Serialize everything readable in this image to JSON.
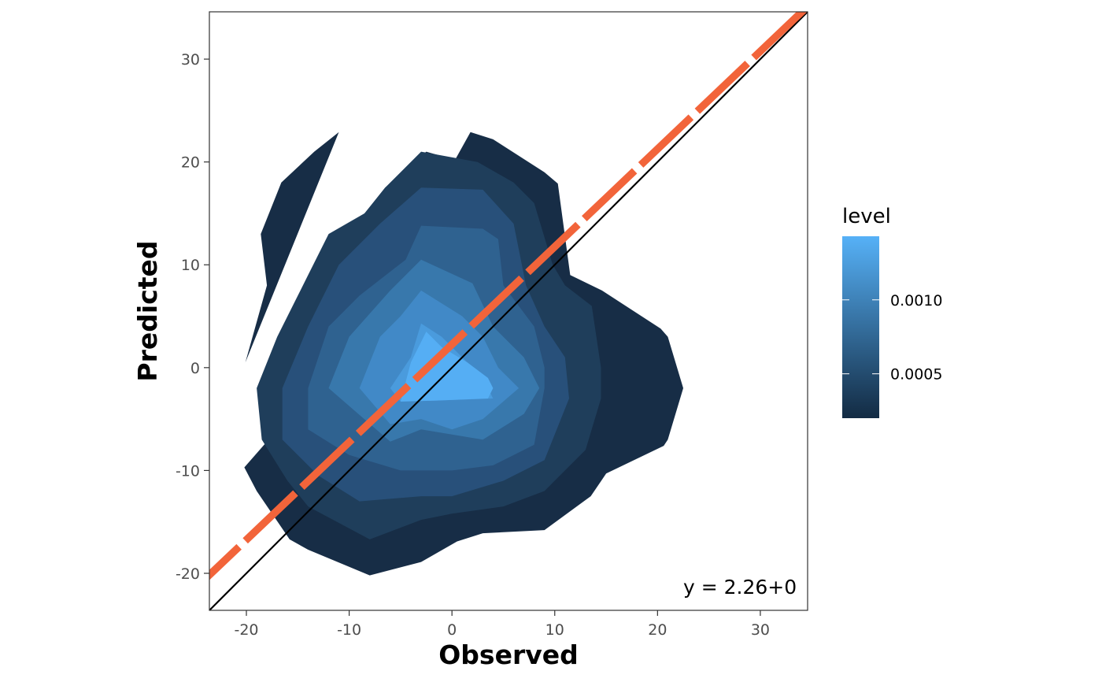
{
  "chart_data": {
    "type": "contour",
    "xlabel": "Observed",
    "ylabel": "Predicted",
    "xlim": [
      -23.6,
      34.6
    ],
    "ylim": [
      -23.6,
      34.6
    ],
    "x_ticks": [
      -20,
      -10,
      0,
      10,
      20,
      30
    ],
    "y_ticks": [
      -20,
      -10,
      0,
      10,
      20,
      30
    ],
    "x_tick_labels": [
      "-20",
      "-10",
      "0",
      "10",
      "20",
      "30"
    ],
    "y_tick_labels": [
      "-20",
      "-10",
      "0",
      "10",
      "20",
      "30"
    ],
    "grid": false,
    "legend": {
      "title": "level",
      "placement": "right",
      "type": "colorbar",
      "range": [
        0.0002,
        0.00143
      ],
      "ticks": [
        0.0005,
        0.001
      ],
      "tick_labels": [
        "0.0005",
        "0.0010"
      ],
      "color_low": "#132B43",
      "color_high": "#56B1F7"
    },
    "density_levels": [
      {
        "level": 0.0002,
        "color": "#172d46",
        "polygons": [
          [
            [
              1.8,
              22.9
            ],
            [
              4,
              22.2
            ],
            [
              9,
              19
            ],
            [
              10.3,
              17.9
            ],
            [
              11.5,
              9
            ],
            [
              14.6,
              7.5
            ],
            [
              20.3,
              3.8
            ],
            [
              21,
              3
            ],
            [
              22.5,
              -2
            ],
            [
              21,
              -7
            ],
            [
              20.6,
              -7.6
            ],
            [
              15,
              -10.3
            ],
            [
              13.5,
              -12.5
            ],
            [
              9,
              -15.8
            ],
            [
              3,
              -16.1
            ],
            [
              0.5,
              -16.9
            ],
            [
              -3,
              -18.9
            ],
            [
              -8,
              -20.2
            ],
            [
              -14,
              -17.7
            ],
            [
              -15.8,
              -16.7
            ],
            [
              -19,
              -12
            ],
            [
              -20.2,
              -9.7
            ],
            [
              -18,
              -7.2
            ],
            [
              -15.5,
              -1
            ],
            [
              -13,
              5
            ],
            [
              -11.8,
              8
            ],
            [
              -10.7,
              12.9
            ],
            [
              -8.5,
              15
            ],
            [
              -6.5,
              17.5
            ],
            [
              -2.5,
              21
            ],
            [
              0.3,
              20.2
            ]
          ],
          [
            [
              -20.1,
              0.5
            ],
            [
              -18,
              8
            ],
            [
              -18.6,
              13
            ],
            [
              -16.6,
              18
            ],
            [
              -13.4,
              21
            ],
            [
              -11,
              22.9
            ]
          ]
        ]
      },
      {
        "level": 0.00035,
        "color": "#1f3e5b",
        "polygons": [
          [
            [
              -3,
              21
            ],
            [
              2.5,
              20
            ],
            [
              6,
              18
            ],
            [
              8,
              16
            ],
            [
              9.8,
              10
            ],
            [
              11,
              8
            ],
            [
              13.6,
              6
            ],
            [
              14.5,
              0
            ],
            [
              14.5,
              -3
            ],
            [
              13,
              -8
            ],
            [
              9,
              -12
            ],
            [
              5,
              -13.5
            ],
            [
              0,
              -14.2
            ],
            [
              -3,
              -14.8
            ],
            [
              -8,
              -16.7
            ],
            [
              -14,
              -13.5
            ],
            [
              -16,
              -11
            ],
            [
              -18.5,
              -7
            ],
            [
              -19,
              -2
            ],
            [
              -17,
              3
            ],
            [
              -14,
              9
            ],
            [
              -12,
              13
            ],
            [
              -8.5,
              15
            ],
            [
              -6.5,
              17.5
            ]
          ]
        ]
      },
      {
        "level": 0.0005,
        "color": "#28507a",
        "polygons": [
          [
            [
              -3,
              17.5
            ],
            [
              3,
              17.3
            ],
            [
              6,
              14
            ],
            [
              6.8,
              10
            ],
            [
              7.2,
              8
            ],
            [
              9,
              4
            ],
            [
              11,
              1
            ],
            [
              11.4,
              -3
            ],
            [
              9,
              -9
            ],
            [
              5,
              -11
            ],
            [
              0,
              -12.5
            ],
            [
              -3,
              -12.5
            ],
            [
              -9,
              -13
            ],
            [
              -13,
              -10.5
            ],
            [
              -16.5,
              -7
            ],
            [
              -16.5,
              -2
            ],
            [
              -14,
              4
            ],
            [
              -11,
              10
            ],
            [
              -7,
              14
            ]
          ]
        ]
      },
      {
        "level": 0.00065,
        "color": "#2f6290",
        "polygons": [
          [
            [
              -3,
              13.8
            ],
            [
              3,
              13.5
            ],
            [
              4.5,
              12.5
            ],
            [
              5,
              8
            ],
            [
              8,
              4
            ],
            [
              9,
              0
            ],
            [
              9,
              -2
            ],
            [
              8,
              -7.5
            ],
            [
              4,
              -9.5
            ],
            [
              0,
              -10
            ],
            [
              -5,
              -10
            ],
            [
              -10,
              -8.5
            ],
            [
              -14,
              -6
            ],
            [
              -14,
              -2
            ],
            [
              -12,
              4
            ],
            [
              -9,
              7
            ],
            [
              -4.5,
              10.5
            ]
          ]
        ]
      },
      {
        "level": 0.0008,
        "color": "#3878ac",
        "polygons": [
          [
            [
              -3,
              10.5
            ],
            [
              2,
              8.2
            ],
            [
              4,
              4
            ],
            [
              7,
              1
            ],
            [
              8.5,
              -2
            ],
            [
              7,
              -4.5
            ],
            [
              3,
              -7
            ],
            [
              -3,
              -6
            ],
            [
              -6,
              -7.2
            ],
            [
              -12,
              -2
            ],
            [
              -10,
              3
            ],
            [
              -6,
              7.5
            ]
          ]
        ]
      },
      {
        "level": 0.00095,
        "color": "#4189c7",
        "polygons": [
          [
            [
              -3,
              7.5
            ],
            [
              1,
              5
            ],
            [
              3,
              3
            ],
            [
              4.5,
              0
            ],
            [
              6.5,
              -2
            ],
            [
              3,
              -5
            ],
            [
              0,
              -6
            ],
            [
              -3,
              -5
            ],
            [
              -6,
              -5.5
            ],
            [
              -9,
              -2
            ],
            [
              -7,
              3
            ],
            [
              -5,
              5
            ]
          ]
        ]
      },
      {
        "level": 0.0011,
        "color": "#4a9bdd",
        "polygons": [
          [
            [
              -3,
              4.3
            ],
            [
              -1,
              3
            ],
            [
              1,
              1
            ],
            [
              3,
              -1
            ],
            [
              4,
              -3
            ],
            [
              -1.5,
              -3.2
            ],
            [
              -5,
              -3.3
            ],
            [
              -6,
              -2
            ],
            [
              -4,
              1
            ]
          ]
        ]
      },
      {
        "level": 0.00125,
        "color": "#55aef4",
        "polygons": [
          [
            [
              -2.5,
              3.5
            ],
            [
              -1,
              2
            ],
            [
              1.5,
              0.5
            ],
            [
              3.5,
              -1
            ],
            [
              4,
              -2
            ],
            [
              3.5,
              -3
            ],
            [
              -1.5,
              -3.2
            ],
            [
              -5,
              -3.3
            ],
            [
              -4,
              0.5
            ]
          ]
        ]
      }
    ],
    "lines": [
      {
        "name": "",
        "style": "solid",
        "color": "#000000",
        "intercept": 0,
        "slope": 1
      },
      {
        "name": "",
        "style": "dashed",
        "color": "#F2643A",
        "intercept": 2.26,
        "slope": 0.95
      }
    ],
    "annotations": [
      {
        "text": "y = 2.26+0",
        "x": 22.5,
        "y": -22
      }
    ]
  }
}
